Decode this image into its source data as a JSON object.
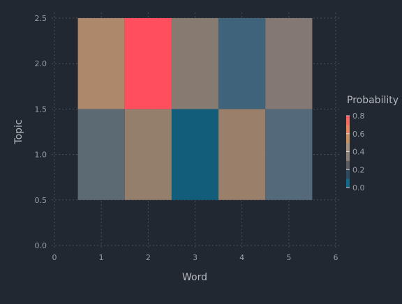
{
  "chart_data": {
    "type": "heatmap",
    "xlabel": "Word",
    "ylabel": "Topic",
    "xlim": [
      0,
      6
    ],
    "ylim": [
      0,
      2.5
    ],
    "x_ticks": [
      "0",
      "1",
      "2",
      "3",
      "4",
      "5",
      "6"
    ],
    "y_ticks": [
      "0.0",
      "0.5",
      "1.0",
      "1.5",
      "2.0",
      "2.5"
    ],
    "x": [
      1,
      2,
      3,
      4,
      5
    ],
    "y": [
      1,
      2
    ],
    "z": [
      [
        0.22,
        0.5,
        0.0,
        0.5,
        0.18
      ],
      [
        0.55,
        0.82,
        0.4,
        0.1,
        0.38
      ]
    ],
    "grid": true,
    "colorbar": {
      "title": "Probability",
      "range": [
        0,
        0.8
      ],
      "ticks": [
        "0.0",
        "0.2",
        "0.4",
        "0.6",
        "0.8"
      ],
      "placement": "right"
    }
  },
  "colors": {
    "background": "#222831",
    "grid": "#4a4f5a",
    "text": "#9a9ea6",
    "label": "#b6b9bf",
    "cells": [
      [
        "#5c6a74",
        "#937f6c",
        "#125e7a",
        "#9a806a",
        "#546a7a"
      ],
      [
        "#ad886a",
        "#ff4f5e",
        "#877a71",
        "#3f637a",
        "#837874"
      ]
    ]
  }
}
